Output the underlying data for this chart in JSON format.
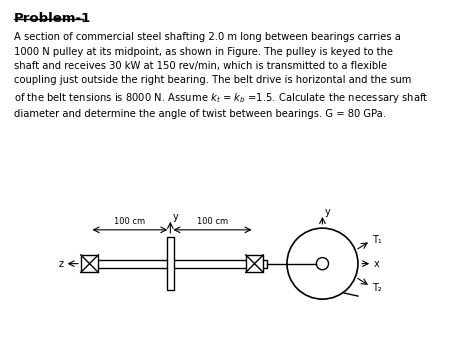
{
  "title": "Problem-1",
  "label_100cm_left": "100 cm",
  "label_100cm_right": "100 cm",
  "label_z": "z",
  "label_x": "x",
  "label_y_left": "y",
  "label_y_right": "y",
  "label_T1": "T₁",
  "label_T2": "T₂",
  "bg_color": "#ffffff",
  "line_color": "#000000",
  "body_lines": [
    "A section of commercial steel shafting 2.0 m long between bearings carries a",
    "1000 N pulley at its midpoint, as shown in Figure. The pulley is keyed to the",
    "shaft and receives 30 kW at 150 rev/min, which is transmitted to a flexible",
    "coupling just outside the right bearing. The belt drive is horizontal and the sum",
    "of the belt tensions is 8000 N. Assume $k_t$ = $k_b$ =1.5. Calculate the necessary shaft",
    "diameter and determine the angle of twist between bearings. G = 80 GPa."
  ]
}
